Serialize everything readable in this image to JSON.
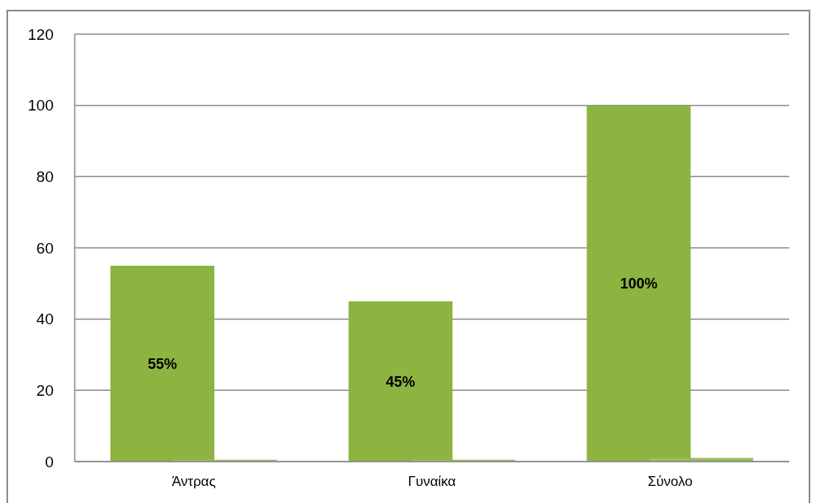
{
  "chart_data": {
    "type": "bar",
    "categories": [
      "Άντρας",
      "Γυναίκα",
      "Σύνολο"
    ],
    "series": [
      {
        "color": "#8db440",
        "values": [
          55,
          45,
          100
        ],
        "value_labels": [
          "55%",
          "45%",
          "100%"
        ]
      },
      {
        "color": "#9bbb59",
        "values": [
          0.5,
          0.5,
          1
        ]
      }
    ],
    "ylim": [
      0,
      120
    ],
    "yticks": [
      0,
      20,
      40,
      60,
      80,
      100,
      120
    ],
    "grid": "y"
  }
}
